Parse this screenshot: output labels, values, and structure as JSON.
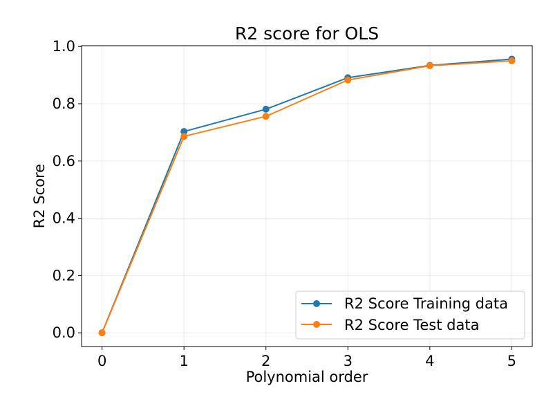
{
  "chart_data": {
    "type": "line",
    "title": "R2 score for OLS",
    "xlabel": "Polynomial order",
    "ylabel": "R2 Score",
    "x": [
      0,
      1,
      2,
      3,
      4,
      5
    ],
    "x_ticks": [
      "0",
      "1",
      "2",
      "3",
      "4",
      "5"
    ],
    "y_ticks": [
      "0.0",
      "0.2",
      "0.4",
      "0.6",
      "0.8",
      "1.0"
    ],
    "y_tick_values": [
      0.0,
      0.2,
      0.4,
      0.6,
      0.8,
      1.0
    ],
    "xlim": [
      -0.25,
      5.25
    ],
    "ylim": [
      -0.048,
      1.003
    ],
    "grid": true,
    "legend_position": "lower-right",
    "series": [
      {
        "name": "R2 Score Training data",
        "color": "#1f77b4",
        "marker": "circle",
        "values": [
          0.0,
          0.703,
          0.781,
          0.891,
          0.934,
          0.956
        ]
      },
      {
        "name": "R2 Score Test data",
        "color": "#ff7f0e",
        "marker": "circle",
        "values": [
          0.0,
          0.686,
          0.756,
          0.883,
          0.933,
          0.95
        ]
      }
    ]
  }
}
